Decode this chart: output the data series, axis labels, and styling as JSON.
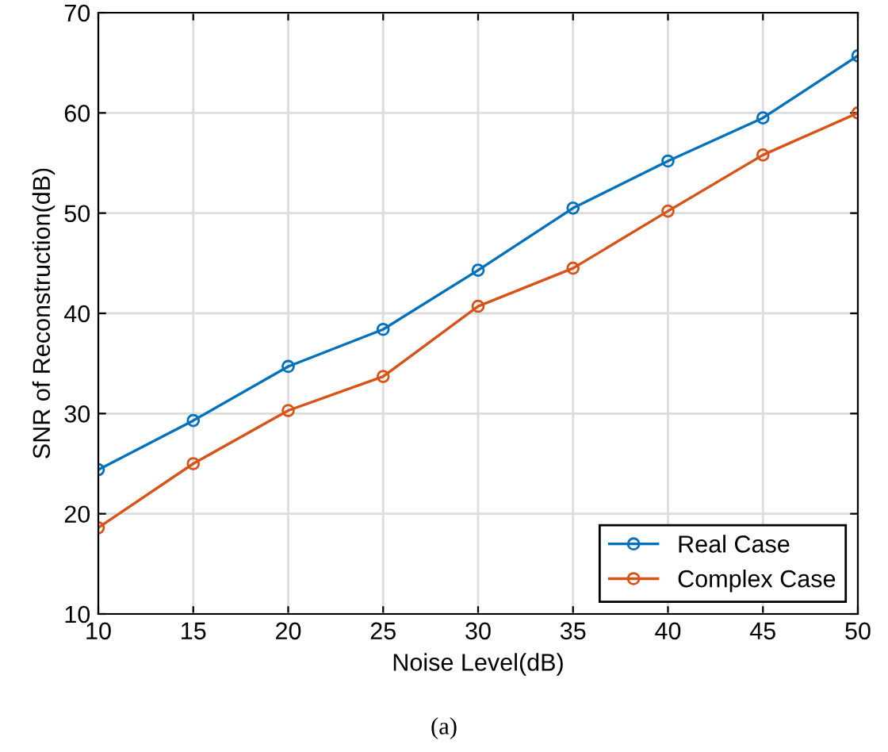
{
  "chart_data": {
    "type": "line",
    "xlabel": "Noise Level(dB)",
    "ylabel": "SNR of Reconstruction(dB)",
    "annotations": [
      "(a)"
    ],
    "x": [
      10,
      15,
      20,
      25,
      30,
      35,
      40,
      45,
      50
    ],
    "series": [
      {
        "name": "Real Case",
        "color": "#0072bd",
        "values": [
          24.4,
          29.3,
          34.7,
          38.4,
          44.3,
          50.5,
          55.2,
          59.5,
          65.7
        ]
      },
      {
        "name": "Complex Case",
        "color": "#d95319",
        "values": [
          18.6,
          25.0,
          30.3,
          33.7,
          40.7,
          44.5,
          50.2,
          55.8,
          60.0
        ]
      }
    ],
    "xlim": [
      10,
      50
    ],
    "ylim": [
      10,
      70
    ],
    "xticks": [
      10,
      15,
      20,
      25,
      30,
      35,
      40,
      45,
      50
    ],
    "yticks": [
      10,
      20,
      30,
      40,
      50,
      60,
      70
    ],
    "grid": true,
    "legend": "bottom right",
    "marker": "circle",
    "line_style": "solid"
  }
}
